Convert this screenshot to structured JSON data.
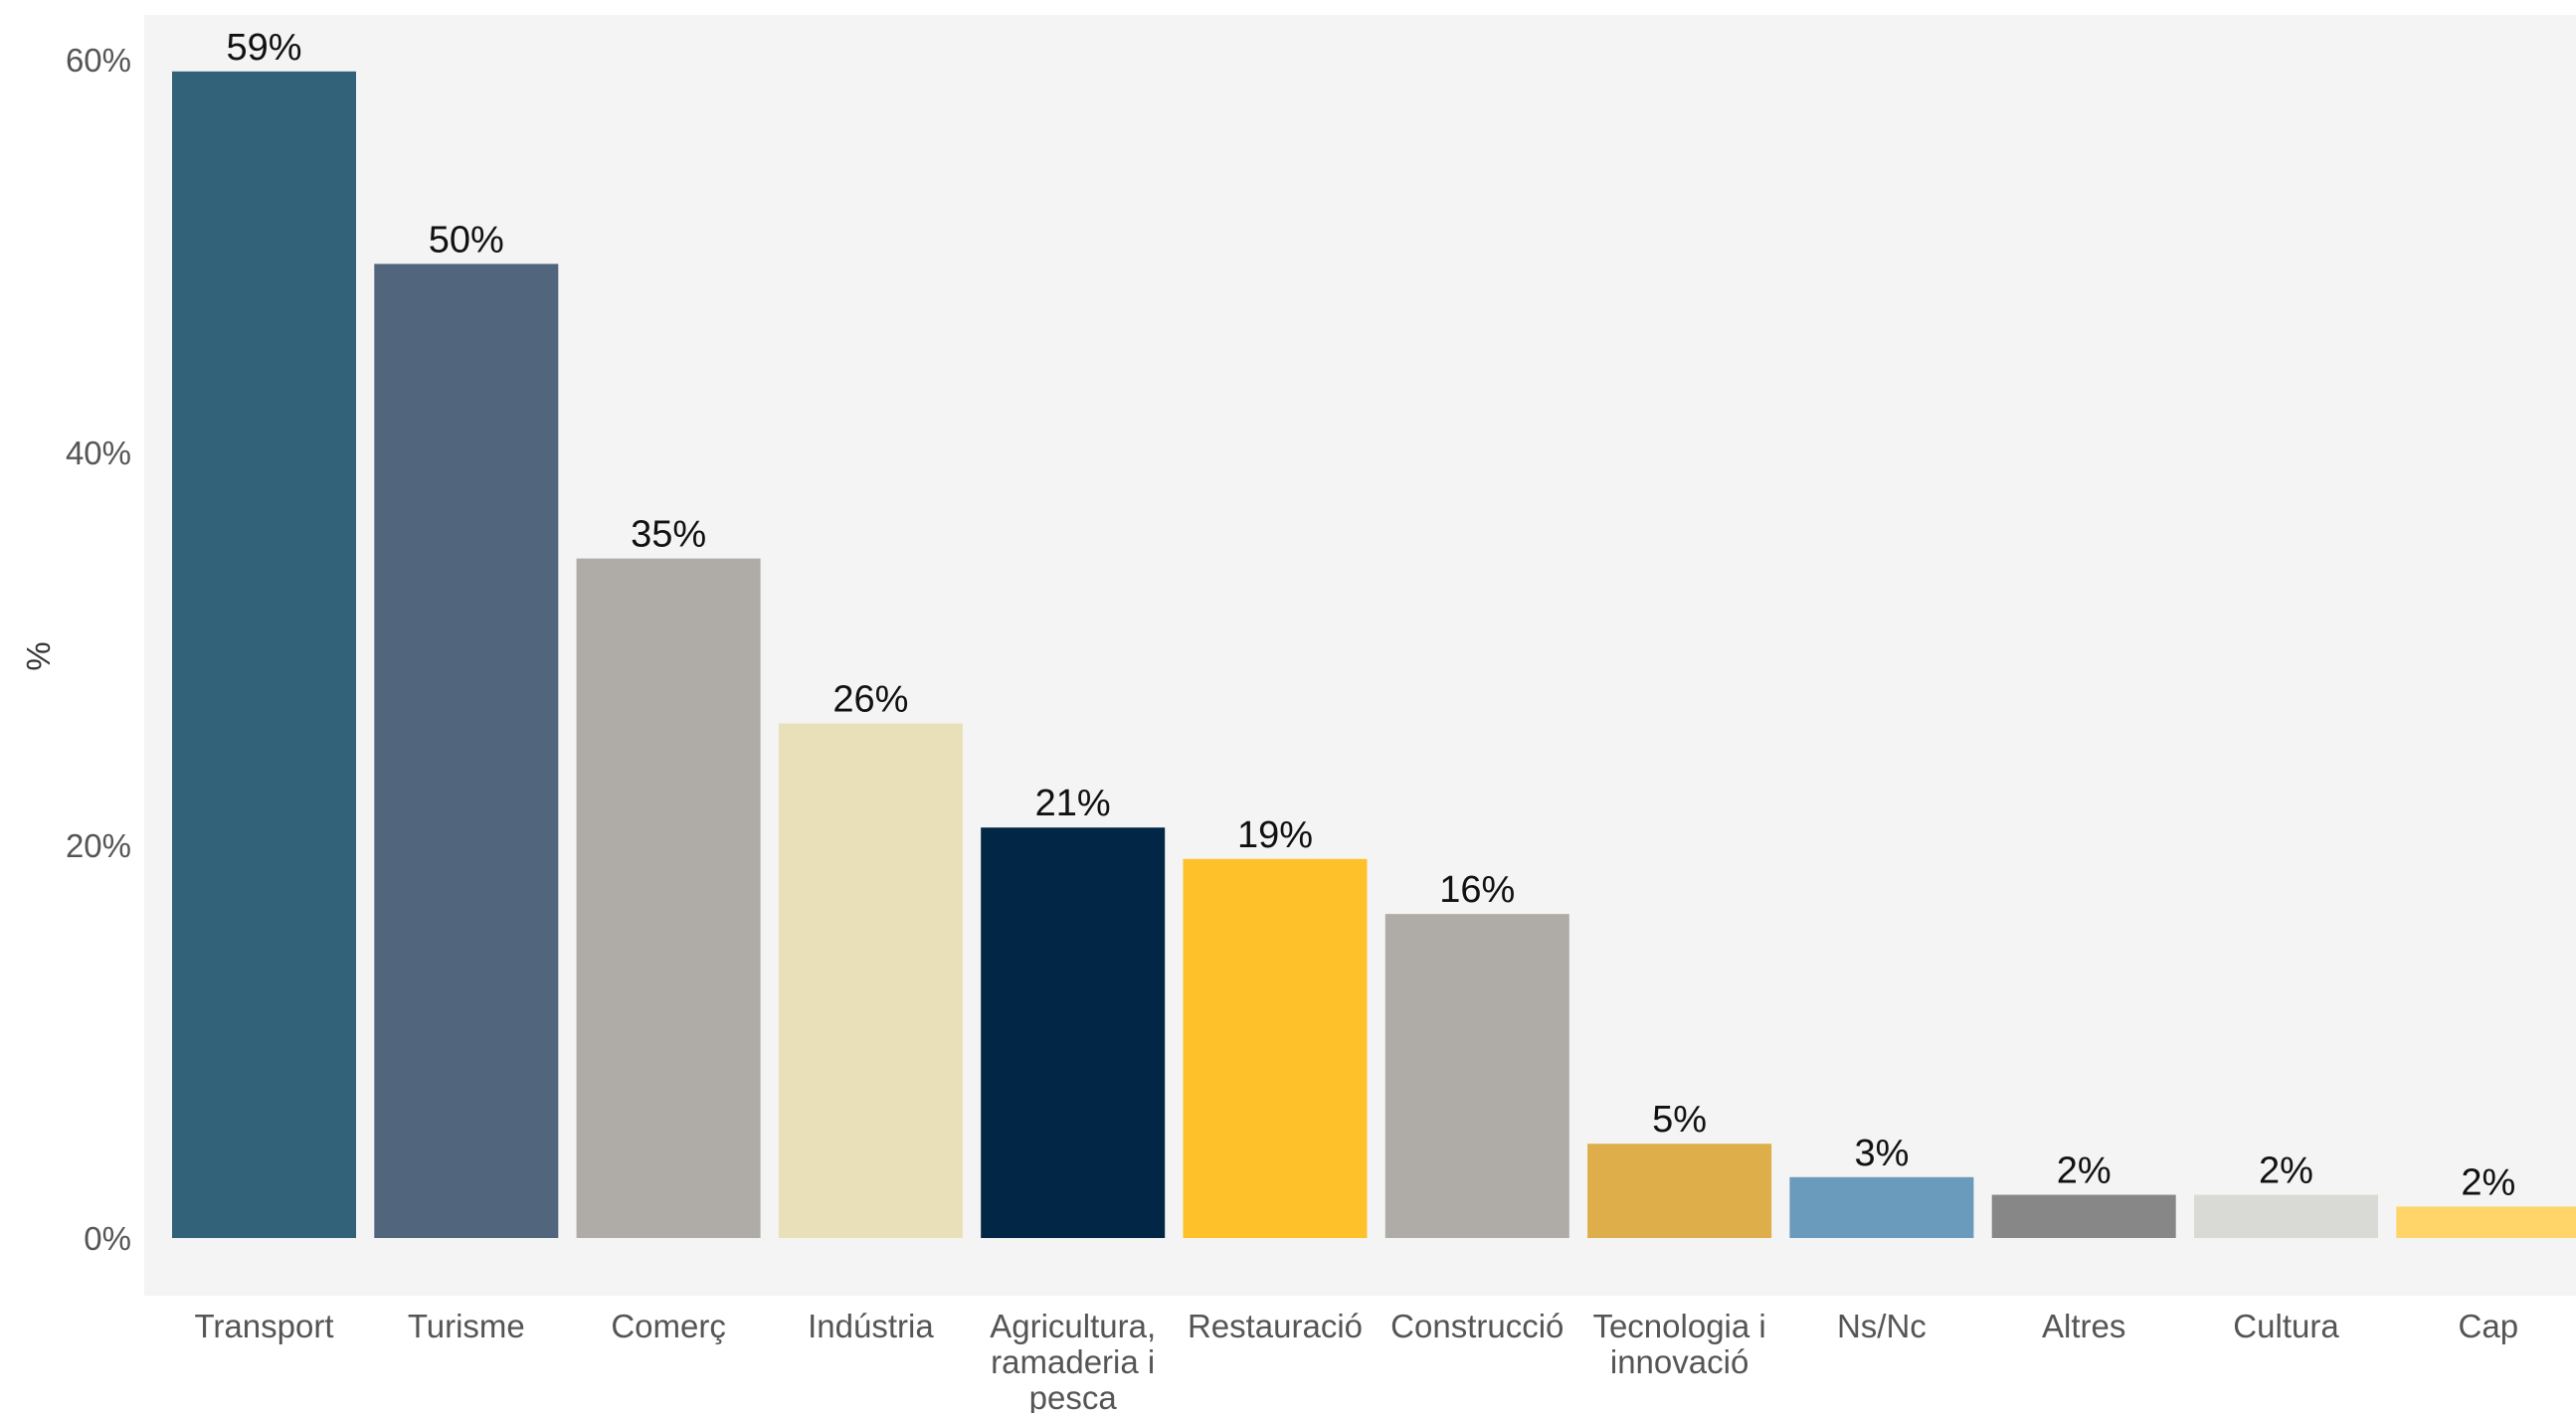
{
  "chart_data": {
    "type": "bar",
    "title": "",
    "xlabel": "",
    "ylabel": "%",
    "ylim": [
      0,
      0.62
    ],
    "yticks": [
      {
        "value": 0,
        "label": "0%"
      },
      {
        "value": 0.2,
        "label": "20%"
      },
      {
        "value": 0.4,
        "label": "40%"
      },
      {
        "value": 0.6,
        "label": "60%"
      }
    ],
    "grid": false,
    "legend": "none",
    "panel_background": "#f4f4f4",
    "categories": [
      [
        "Transport"
      ],
      [
        "Turisme"
      ],
      [
        "Comerç"
      ],
      [
        "Indústria"
      ],
      [
        "Agricultura,",
        "ramaderia i",
        "pesca"
      ],
      [
        "Restauració"
      ],
      [
        "Construcció"
      ],
      [
        "Tecnologia i",
        "innovació"
      ],
      [
        "Ns/Nc"
      ],
      [
        "Altres"
      ],
      [
        "Cultura"
      ],
      [
        "Cap"
      ]
    ],
    "values": [
      0.594,
      0.496,
      0.346,
      0.262,
      0.209,
      0.193,
      0.165,
      0.048,
      0.031,
      0.022,
      0.022,
      0.016
    ],
    "data_labels": [
      "59%",
      "50%",
      "35%",
      "26%",
      "21%",
      "19%",
      "16%",
      "5%",
      "3%",
      "2%",
      "2%",
      "2%"
    ],
    "colors": [
      "#31627a",
      "#51657d",
      "#afaba6",
      "#e9e0ba",
      "#022746",
      "#fec12a",
      "#afaba6",
      "#ddae49",
      "#6a9bbd",
      "#878787",
      "#d9d9d5",
      "#ffd468"
    ]
  }
}
